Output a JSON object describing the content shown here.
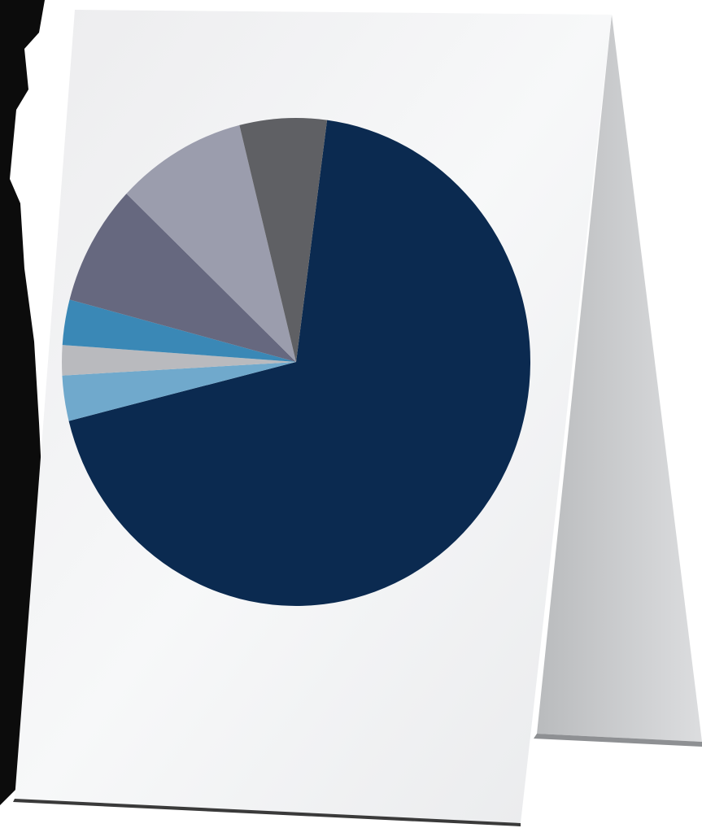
{
  "chart_data": {
    "type": "pie",
    "values": [
      69,
      3,
      2,
      3,
      8,
      9,
      6
    ],
    "colors": [
      "#0b2a50",
      "#70a9cc",
      "#b9babe",
      "#3a88b6",
      "#66687f",
      "#9b9dad",
      "#5f6064"
    ]
  }
}
